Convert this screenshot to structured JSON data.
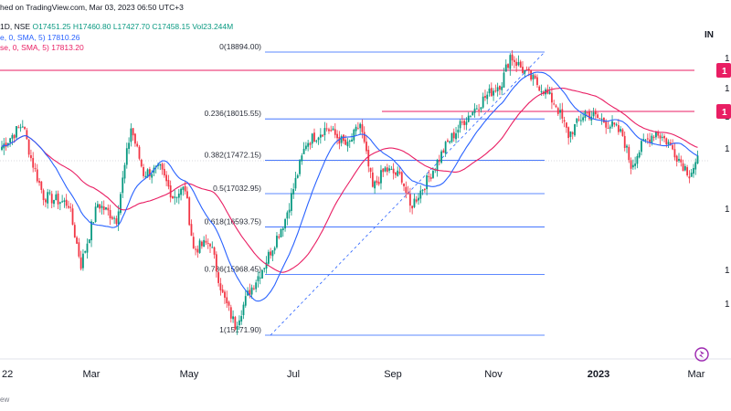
{
  "header": {
    "line1": "hed on TradingView.com, Mar 03, 2023 06:50 UTC+3",
    "line2_prefix": "1D, NSE",
    "ohlc": "O17451.25  H17460.80  L17427.70  C17458.15  Vol23.244M",
    "ma1": "e, 0, SMA, 5)  17810.26",
    "ma2": "se, 0, SMA, 5)  17813.20"
  },
  "symbol_partial": "IN",
  "colors": {
    "up": "#089981",
    "down": "#f23645",
    "ma_fast": "#2962ff",
    "ma_slow": "#e91e63",
    "fib": "#2962ff",
    "hline": "#e91e63",
    "tag": "#e91e63",
    "logo": "#9c27b0"
  },
  "footer_partial": "ew",
  "logo_icon": "tradingview-logo-icon",
  "chart_data": {
    "type": "candlestick",
    "x_axis_labels": [
      "22",
      "Mar",
      "May",
      "Jul",
      "Sep",
      "Nov",
      "2023",
      "Mar"
    ],
    "right_axis_partial": [
      "1",
      "1",
      "1",
      "1",
      "1",
      "1",
      "1"
    ],
    "price_tags": [
      "1",
      "1"
    ],
    "ylim": [
      15000,
      19050
    ],
    "fib_levels": [
      {
        "ratio": "0",
        "price": 18894.0,
        "label": "0(18894.00)"
      },
      {
        "ratio": "0.236",
        "price": 18015.55,
        "label": "0.236(18015.55)"
      },
      {
        "ratio": "0.382",
        "price": 17472.15,
        "label": "0.382(17472.15)"
      },
      {
        "ratio": "0.5",
        "price": 17032.95,
        "label": "0.5(17032.95)"
      },
      {
        "ratio": "0.618",
        "price": 16593.75,
        "label": "0.618(16593.75)"
      },
      {
        "ratio": "0.786",
        "price": 15968.45,
        "label": "0.786(15968.45)"
      },
      {
        "ratio": "1",
        "price": 15171.9,
        "label": "1(15171.90)"
      }
    ],
    "horizontal_lines": [
      18600,
      18000
    ],
    "waypoints": [
      {
        "d": 0,
        "p": 17650
      },
      {
        "d": 10,
        "p": 17950
      },
      {
        "d": 14,
        "p": 17500
      },
      {
        "d": 20,
        "p": 17000
      },
      {
        "d": 32,
        "p": 16900
      },
      {
        "d": 38,
        "p": 16100
      },
      {
        "d": 46,
        "p": 16900
      },
      {
        "d": 55,
        "p": 16700
      },
      {
        "d": 62,
        "p": 17900
      },
      {
        "d": 68,
        "p": 17300
      },
      {
        "d": 76,
        "p": 17350
      },
      {
        "d": 82,
        "p": 17000
      },
      {
        "d": 88,
        "p": 17100
      },
      {
        "d": 92,
        "p": 16300
      },
      {
        "d": 100,
        "p": 16400
      },
      {
        "d": 106,
        "p": 15700
      },
      {
        "d": 112,
        "p": 15300
      },
      {
        "d": 118,
        "p": 15700
      },
      {
        "d": 126,
        "p": 16100
      },
      {
        "d": 136,
        "p": 16700
      },
      {
        "d": 146,
        "p": 17700
      },
      {
        "d": 156,
        "p": 17900
      },
      {
        "d": 166,
        "p": 17650
      },
      {
        "d": 172,
        "p": 17950
      },
      {
        "d": 178,
        "p": 17100
      },
      {
        "d": 184,
        "p": 17350
      },
      {
        "d": 192,
        "p": 17250
      },
      {
        "d": 196,
        "p": 16850
      },
      {
        "d": 204,
        "p": 17200
      },
      {
        "d": 214,
        "p": 17700
      },
      {
        "d": 222,
        "p": 18000
      },
      {
        "d": 232,
        "p": 18300
      },
      {
        "d": 240,
        "p": 18500
      },
      {
        "d": 244,
        "p": 18850
      },
      {
        "d": 252,
        "p": 18600
      },
      {
        "d": 260,
        "p": 18400
      },
      {
        "d": 266,
        "p": 18200
      },
      {
        "d": 272,
        "p": 17800
      },
      {
        "d": 280,
        "p": 18100
      },
      {
        "d": 288,
        "p": 18000
      },
      {
        "d": 294,
        "p": 17900
      },
      {
        "d": 298,
        "p": 17800
      },
      {
        "d": 302,
        "p": 17400
      },
      {
        "d": 308,
        "p": 17700
      },
      {
        "d": 314,
        "p": 17850
      },
      {
        "d": 320,
        "p": 17700
      },
      {
        "d": 326,
        "p": 17450
      },
      {
        "d": 330,
        "p": 17300
      },
      {
        "d": 334,
        "p": 17460
      }
    ]
  }
}
